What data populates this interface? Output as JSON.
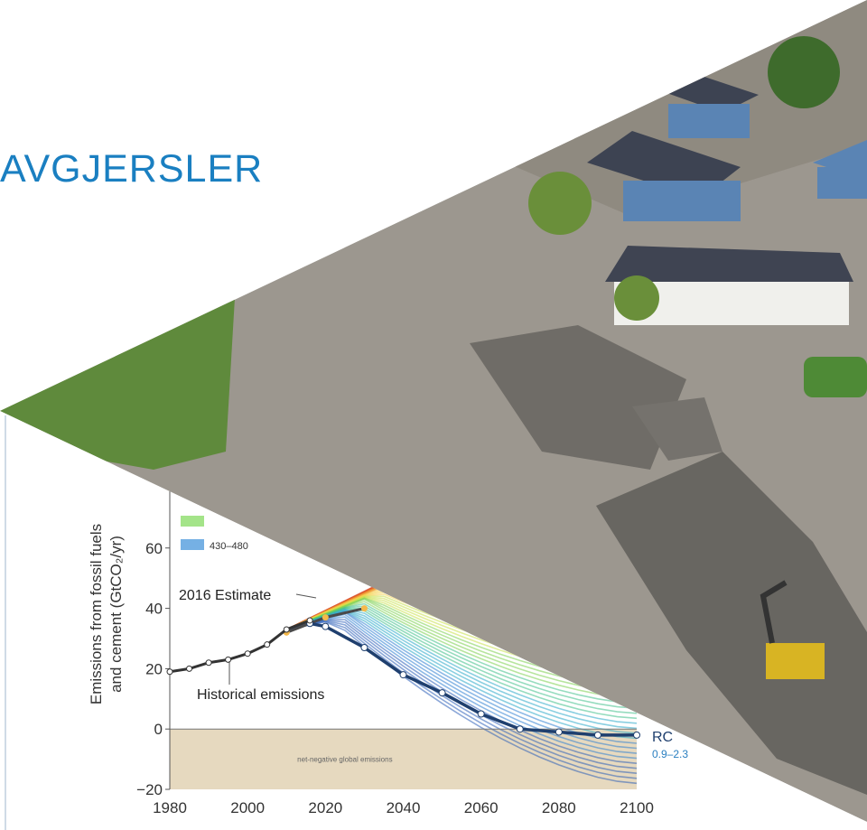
{
  "slide": {
    "title": "AVGJERSLER",
    "title_color": "#1a7fc1"
  },
  "photo": {
    "icon": "flood-aerial-photo",
    "colors": {
      "water": "#9a958e",
      "rubble": "#6c6a66",
      "roof": "#3d4352",
      "wall_blue": "#5a84b4",
      "tree": "#5f8a3c"
    }
  },
  "chart_data": {
    "type": "line",
    "ylabel_line1": "Emissions from fossil fuels",
    "ylabel_line2": "and cement (GtCO₂/yr)",
    "x_ticks": [
      1980,
      2000,
      2020,
      2040,
      2060,
      2080,
      2100
    ],
    "y_ticks": [
      -20,
      0,
      20,
      40,
      60
    ],
    "xlim": [
      1980,
      2100
    ],
    "ylim": [
      -20,
      80
    ],
    "historical": {
      "x": [
        1980,
        1985,
        1990,
        1995,
        2000,
        2005,
        2010,
        2016
      ],
      "y": [
        19,
        20,
        22,
        23,
        25,
        28,
        33,
        36
      ]
    },
    "pathway_median": {
      "x": [
        2016,
        2020,
        2030,
        2040,
        2050,
        2060,
        2070,
        2080,
        2090,
        2100
      ],
      "y": [
        35,
        34,
        27,
        18,
        12,
        5,
        0,
        -1,
        -2,
        -2
      ]
    },
    "upper_pathway": {
      "x": [
        2010,
        2020,
        2030
      ],
      "y": [
        32,
        37,
        40
      ]
    },
    "legend": [
      {
        "label": "",
        "color": "#7ed957"
      },
      {
        "label": "430–480",
        "color": "#3a8fd8"
      }
    ],
    "annotations": {
      "estimate": "2016 Estimate",
      "historical": "Historical emissions",
      "negative_band": "net-negative global emissions",
      "right_label_1": "RC",
      "right_label_2": "0.9–2.3"
    },
    "colors": {
      "historical": "#333333",
      "median": "#1f3f6e",
      "negative_band": "#e6d9bf",
      "zero_line": "#777777"
    }
  }
}
